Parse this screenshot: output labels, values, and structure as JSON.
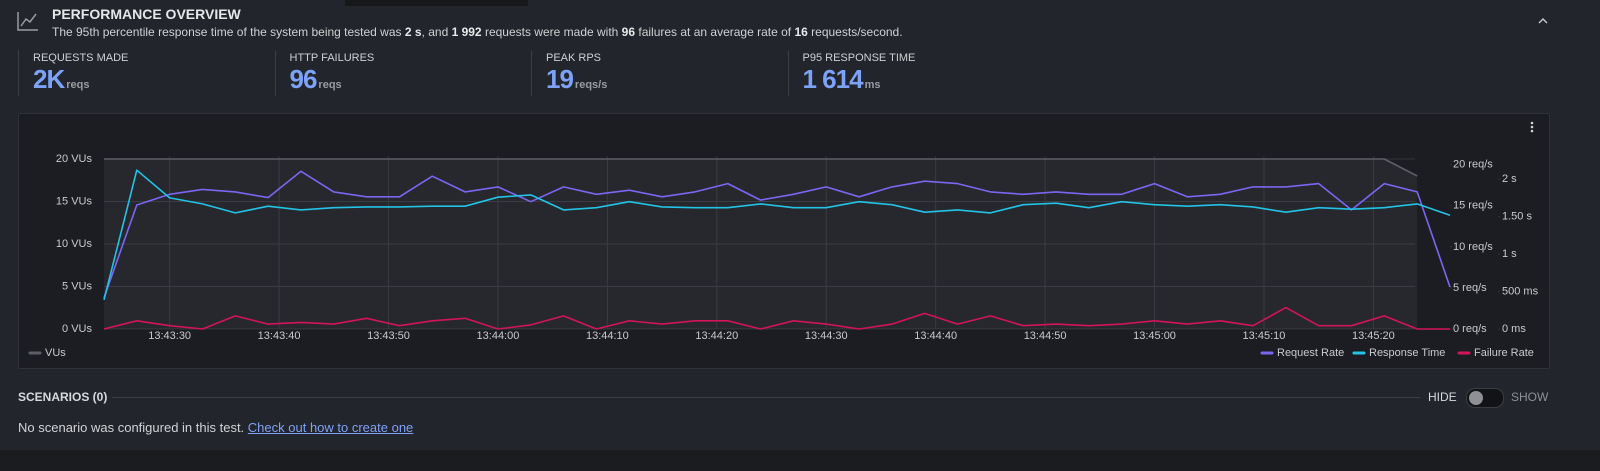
{
  "header": {
    "title": "PERFORMANCE OVERVIEW",
    "description": [
      {
        "text": "The 95th percentile response time of the system being tested was ",
        "bold": false
      },
      {
        "text": "2 s",
        "bold": true
      },
      {
        "text": ", and ",
        "bold": false
      },
      {
        "text": "1 992",
        "bold": true
      },
      {
        "text": " requests were made with ",
        "bold": false
      },
      {
        "text": "96",
        "bold": true
      },
      {
        "text": " failures at an average rate of ",
        "bold": false
      },
      {
        "text": "16",
        "bold": true
      },
      {
        "text": " requests/second.",
        "bold": false
      }
    ]
  },
  "stats": [
    {
      "label": "REQUESTS MADE",
      "value": "2K",
      "unit": "reqs"
    },
    {
      "label": "HTTP FAILURES",
      "value": "96",
      "unit": "reqs"
    },
    {
      "label": "PEAK RPS",
      "value": "19",
      "unit": "reqs/s"
    },
    {
      "label": "P95 RESPONSE TIME",
      "value": "1 614",
      "unit": "ms"
    }
  ],
  "chart_data": {
    "type": "line",
    "x": [
      "13:43:24",
      "13:43:27",
      "13:43:30",
      "13:43:33",
      "13:43:36",
      "13:43:39",
      "13:43:42",
      "13:43:45",
      "13:43:48",
      "13:43:51",
      "13:43:54",
      "13:43:57",
      "13:44:00",
      "13:44:03",
      "13:44:06",
      "13:44:09",
      "13:44:12",
      "13:44:15",
      "13:44:18",
      "13:44:21",
      "13:44:24",
      "13:44:27",
      "13:44:30",
      "13:44:33",
      "13:44:36",
      "13:44:39",
      "13:44:42",
      "13:44:45",
      "13:44:48",
      "13:44:51",
      "13:44:54",
      "13:44:57",
      "13:45:00",
      "13:45:03",
      "13:45:06",
      "13:45:09",
      "13:45:12",
      "13:45:15",
      "13:45:18",
      "13:45:21",
      "13:45:24",
      "13:45:27"
    ],
    "xlim": [
      "13:43:24",
      "13:45:27"
    ],
    "xticks": [
      "13:43:30",
      "13:43:40",
      "13:43:50",
      "13:44:00",
      "13:44:10",
      "13:44:20",
      "13:44:30",
      "13:44:40",
      "13:44:50",
      "13:45:00",
      "13:45:10",
      "13:45:20"
    ],
    "ylim": [
      0,
      20
    ],
    "yticks": [
      {
        "value": 0,
        "label": "0 VUs"
      },
      {
        "value": 5,
        "label": "5 VUs"
      },
      {
        "value": 10,
        "label": "10 VUs"
      },
      {
        "value": 15,
        "label": "15 VUs"
      },
      {
        "value": 20,
        "label": "20 VUs"
      }
    ],
    "y2lim": [
      0,
      20.7
    ],
    "y2ticks": [
      {
        "value": 0,
        "label": "0 req/s"
      },
      {
        "value": 5,
        "label": "5 req/s"
      },
      {
        "value": 10,
        "label": "10 req/s"
      },
      {
        "value": 15,
        "label": "15 req/s"
      },
      {
        "value": 20,
        "label": "20 req/s"
      }
    ],
    "y3lim": [
      0,
      2270
    ],
    "y3ticks": [
      {
        "value": 0,
        "label": "0 ms"
      },
      {
        "value": 500,
        "label": "500 ms"
      },
      {
        "value": 1000,
        "label": "1 s"
      },
      {
        "value": 1500,
        "label": "1.50 s"
      },
      {
        "value": 2000,
        "label": "2 s"
      }
    ],
    "grid": true,
    "series": [
      {
        "name": "VUs",
        "color": "#5c5f66",
        "axis": "y",
        "area": true,
        "values": [
          20,
          20,
          20,
          20,
          20,
          20,
          20,
          20,
          20,
          20,
          20,
          20,
          20,
          20,
          20,
          20,
          20,
          20,
          20,
          20,
          20,
          20,
          20,
          20,
          20,
          20,
          20,
          20,
          20,
          20,
          20,
          20,
          20,
          20,
          20,
          20,
          20,
          20,
          20,
          20,
          18,
          null
        ]
      },
      {
        "name": "Request Rate",
        "color": "#7b66f2",
        "axis": "y2",
        "values": [
          3.8,
          15.1,
          16.4,
          17,
          16.7,
          16,
          19.2,
          16.7,
          16.1,
          16.1,
          18.6,
          16.7,
          17.3,
          15.5,
          17.3,
          16.4,
          16.9,
          16.1,
          16.7,
          17.7,
          15.7,
          16.4,
          17.3,
          16.1,
          17.3,
          18,
          17.7,
          16.7,
          16.4,
          16.7,
          16.4,
          16.4,
          17.7,
          16.1,
          16.4,
          17.3,
          17.3,
          17.7,
          14.5,
          17.7,
          16.7,
          5.1
        ]
      },
      {
        "name": "Response Time",
        "color": "#22c3e6",
        "axis": "y3",
        "values": [
          390,
          2120,
          1750,
          1670,
          1550,
          1640,
          1590,
          1620,
          1630,
          1630,
          1640,
          1640,
          1760,
          1790,
          1590,
          1620,
          1700,
          1630,
          1620,
          1620,
          1670,
          1620,
          1620,
          1700,
          1660,
          1560,
          1590,
          1550,
          1660,
          1680,
          1620,
          1700,
          1660,
          1640,
          1660,
          1630,
          1560,
          1620,
          1600,
          1620,
          1670,
          1520
        ]
      },
      {
        "name": "Failure Rate",
        "color": "#d3145a",
        "axis": "y2",
        "values": [
          0,
          1,
          0.4,
          0,
          1.6,
          0.6,
          0.8,
          0.6,
          1.3,
          0.4,
          1,
          1.3,
          0,
          0.5,
          1.6,
          0,
          1,
          0.6,
          1,
          1,
          0,
          1,
          0.6,
          0,
          0.6,
          1.9,
          0.6,
          1.6,
          0.4,
          0.6,
          0.4,
          0.6,
          1,
          0.6,
          1,
          0.4,
          2.6,
          0.4,
          0.4,
          1.6,
          0,
          0
        ]
      }
    ]
  },
  "scenarios": {
    "title": "SCENARIOS (0)",
    "hide": "HIDE",
    "show": "SHOW",
    "message": "No scenario was configured in this test.",
    "link": "Check out how to create one"
  }
}
